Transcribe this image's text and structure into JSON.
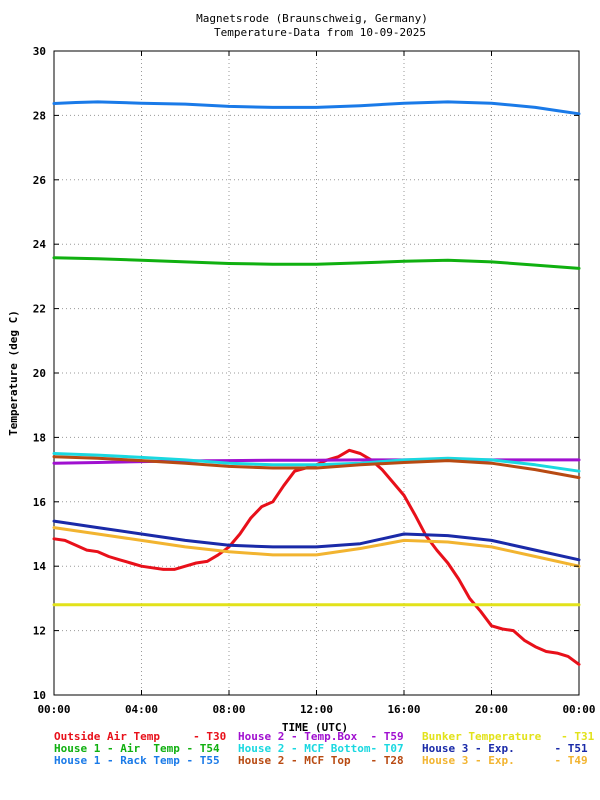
{
  "chart_data": {
    "type": "line",
    "title_line1": "Magnetsrode (Braunschweig, Germany)",
    "title_line2": "Temperature-Data from 10-09-2025",
    "xlabel": "TIME (UTC)",
    "ylabel": "Temperature (deg C)",
    "xlim": [
      0,
      24
    ],
    "ylim": [
      10,
      30
    ],
    "xticks": [
      0,
      4,
      8,
      12,
      16,
      20,
      24
    ],
    "xtick_labels": [
      "00:00",
      "04:00",
      "08:00",
      "12:00",
      "16:00",
      "20:00",
      "00:00"
    ],
    "yticks": [
      10,
      12,
      14,
      16,
      18,
      20,
      22,
      24,
      26,
      28,
      30
    ],
    "ytick_labels": [
      "10",
      "12",
      "14",
      "16",
      "18",
      "20",
      "22",
      "24",
      "26",
      "28",
      "30"
    ],
    "grid": true,
    "legend_position": "bottom",
    "series": [
      {
        "legend": "Outside Air Temp     - T30",
        "color": "#e8101a",
        "x": [
          0,
          0.5,
          1,
          1.5,
          2,
          2.5,
          3,
          3.5,
          4,
          4.5,
          5,
          5.5,
          6,
          6.5,
          7,
          7.5,
          8,
          8.5,
          9,
          9.5,
          10,
          10.5,
          11,
          11.5,
          12,
          12.5,
          13,
          13.5,
          14,
          14.5,
          15,
          15.5,
          16,
          16.5,
          17,
          17.5,
          18,
          18.5,
          19,
          19.5,
          20,
          20.5,
          21,
          21.5,
          22,
          22.5,
          23,
          23.5,
          24
        ],
        "y": [
          14.85,
          14.8,
          14.65,
          14.5,
          14.45,
          14.3,
          14.2,
          14.1,
          14.0,
          13.95,
          13.9,
          13.9,
          14.0,
          14.1,
          14.15,
          14.35,
          14.6,
          15.0,
          15.5,
          15.85,
          16.0,
          16.5,
          16.95,
          17.05,
          17.15,
          17.3,
          17.4,
          17.6,
          17.5,
          17.3,
          17.0,
          16.6,
          16.2,
          15.6,
          14.95,
          14.5,
          14.1,
          13.6,
          13.0,
          12.6,
          12.15,
          12.05,
          12.0,
          11.7,
          11.5,
          11.35,
          11.3,
          11.2,
          10.95
        ]
      },
      {
        "legend": "House 1 - Air  Temp - T54",
        "color": "#10b010",
        "x": [
          0,
          2,
          4,
          6,
          8,
          10,
          12,
          14,
          16,
          18,
          20,
          22,
          24
        ],
        "y": [
          23.58,
          23.55,
          23.5,
          23.45,
          23.4,
          23.38,
          23.38,
          23.42,
          23.47,
          23.5,
          23.45,
          23.35,
          23.25
        ]
      },
      {
        "legend": "House 1 - Rack Temp - T55",
        "color": "#1a7ae8",
        "x": [
          0,
          1,
          2,
          4,
          6,
          8,
          10,
          12,
          14,
          16,
          18,
          20,
          22,
          23,
          24
        ],
        "y": [
          28.37,
          28.4,
          28.42,
          28.38,
          28.35,
          28.28,
          28.25,
          28.25,
          28.3,
          28.38,
          28.42,
          28.38,
          28.25,
          28.15,
          28.05
        ]
      },
      {
        "legend": "House 2 - Temp.Box  - T59",
        "color": "#a010d0",
        "x": [
          0,
          2,
          4,
          6,
          8,
          10,
          12,
          14,
          16,
          18,
          20,
          22,
          24
        ],
        "y": [
          17.2,
          17.22,
          17.25,
          17.27,
          17.28,
          17.29,
          17.29,
          17.3,
          17.3,
          17.3,
          17.3,
          17.3,
          17.3
        ]
      },
      {
        "legend": "House 2 - MCF Bottom- T07",
        "color": "#1ad8e0",
        "x": [
          0,
          2,
          4,
          6,
          8,
          10,
          12,
          14,
          16,
          18,
          20,
          22,
          24
        ],
        "y": [
          17.5,
          17.45,
          17.38,
          17.3,
          17.2,
          17.15,
          17.15,
          17.2,
          17.3,
          17.35,
          17.3,
          17.15,
          16.95
        ]
      },
      {
        "legend": "House 2 - MCF Top   - T28",
        "color": "#b84a12",
        "x": [
          0,
          2,
          4,
          6,
          8,
          10,
          12,
          14,
          16,
          18,
          20,
          22,
          24
        ],
        "y": [
          17.4,
          17.35,
          17.28,
          17.2,
          17.1,
          17.05,
          17.05,
          17.15,
          17.22,
          17.28,
          17.2,
          17.0,
          16.75
        ]
      },
      {
        "legend": "Bunker Temperature   - T31",
        "color": "#e2e21a",
        "x": [
          0,
          24
        ],
        "y": [
          12.8,
          12.8
        ]
      },
      {
        "legend": "House 3 - Exp.      - T51",
        "color": "#1a2aa8",
        "x": [
          0,
          2,
          4,
          6,
          8,
          10,
          12,
          14,
          16,
          18,
          20,
          22,
          24
        ],
        "y": [
          15.4,
          15.2,
          15.0,
          14.8,
          14.65,
          14.6,
          14.6,
          14.7,
          15.0,
          14.95,
          14.8,
          14.5,
          14.2
        ]
      },
      {
        "legend": "House 3 - Exp.      - T49",
        "color": "#f2b430",
        "x": [
          0,
          2,
          4,
          6,
          8,
          10,
          12,
          14,
          16,
          18,
          20,
          22,
          24
        ],
        "y": [
          15.2,
          15.0,
          14.8,
          14.6,
          14.45,
          14.35,
          14.35,
          14.55,
          14.8,
          14.75,
          14.6,
          14.3,
          14.0
        ]
      }
    ]
  }
}
